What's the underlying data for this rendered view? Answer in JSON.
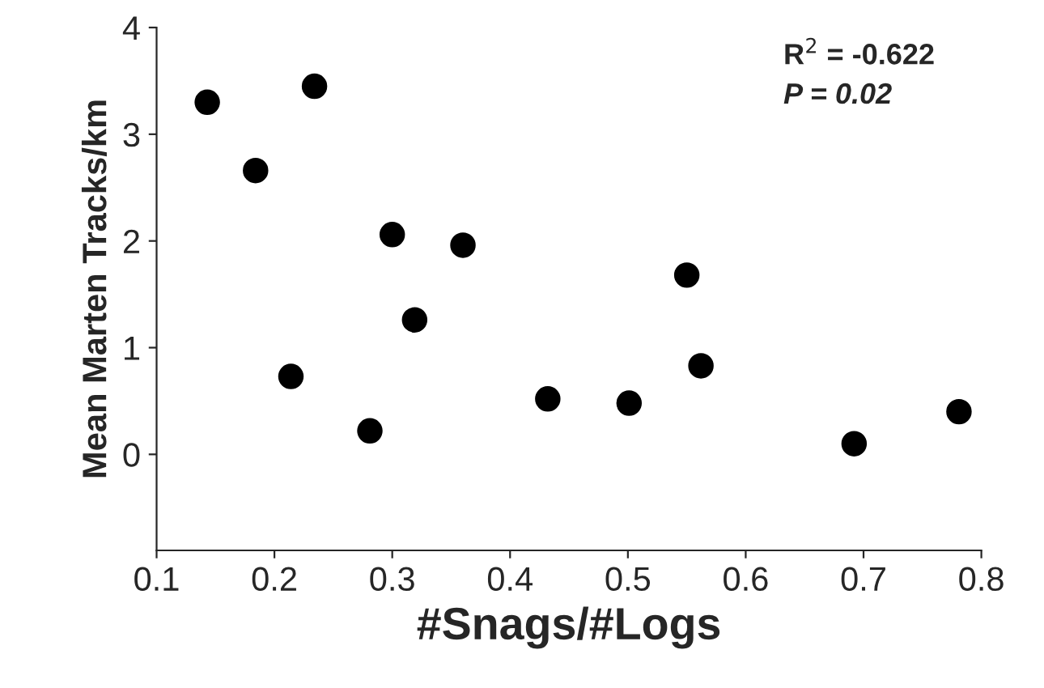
{
  "chart_data": {
    "type": "scatter",
    "xlabel": "#Snags/#Logs",
    "ylabel": "Mean Marten Tracks/km",
    "x": [
      0.143,
      0.184,
      0.234,
      0.214,
      0.281,
      0.3,
      0.319,
      0.36,
      0.432,
      0.501,
      0.55,
      0.562,
      0.692,
      0.781
    ],
    "series": [
      {
        "color": "#000000",
        "values": [
          3.3,
          2.66,
          3.45,
          0.73,
          0.22,
          2.06,
          1.26,
          1.96,
          0.52,
          0.48,
          1.68,
          0.83,
          0.1,
          0.4
        ]
      }
    ],
    "xlim": [
      0.1,
      0.8
    ],
    "ylim": [
      -0.9,
      4
    ],
    "xticks": [
      0.1,
      0.2,
      0.3,
      0.4,
      0.5,
      0.6,
      0.7,
      0.8
    ],
    "yticks": [
      0,
      1,
      2,
      3,
      4
    ],
    "marker": "circle",
    "grid": false,
    "annotations": [
      "R$^{2}$ = -0.622",
      "P = 0.02"
    ]
  }
}
